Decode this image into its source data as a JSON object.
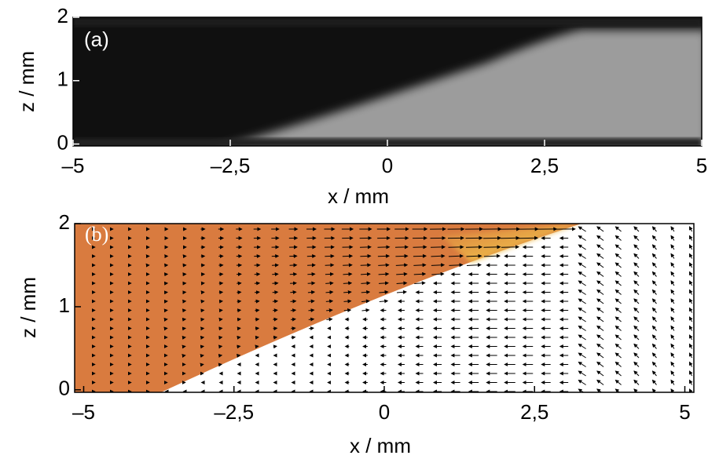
{
  "chart_data": [
    {
      "type": "image",
      "label": "(a)",
      "xlabel": "x / mm",
      "ylabel": "z / mm",
      "xlim": [
        -5,
        5
      ],
      "ylim": [
        -0.03,
        2
      ],
      "xticks": [
        {
          "value": -5,
          "label": "–5"
        },
        {
          "value": -2.5,
          "label": "–2,5"
        },
        0,
        {
          "value": 2.5,
          "label": "2,5"
        },
        5
      ],
      "yticks": [
        0,
        1,
        2
      ]
    },
    {
      "type": "quiver",
      "label": "(b)",
      "xlabel": "x / mm",
      "ylabel": "z / mm",
      "xlim": [
        -5.15,
        5.15
      ],
      "ylim": [
        -0.03,
        2
      ],
      "xticks": [
        {
          "value": -5,
          "label": "–5"
        },
        {
          "value": -2.5,
          "label": "–2,5"
        },
        0,
        {
          "value": 2.5,
          "label": "2,5"
        },
        5
      ],
      "yticks": [
        0,
        1,
        2
      ],
      "color": "#d97b3f"
    }
  ]
}
